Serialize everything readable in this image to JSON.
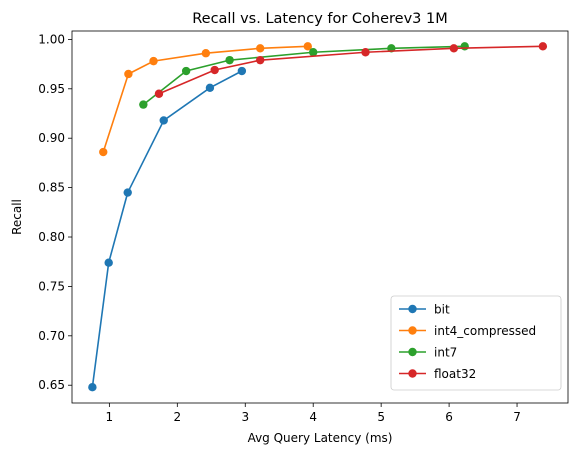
{
  "chart_data": {
    "type": "line",
    "title": "Recall vs. Latency for Coherev3 1M",
    "xlabel": "Avg Query Latency (ms)",
    "ylabel": "Recall",
    "xlim": [
      0.45,
      7.75
    ],
    "ylim": [
      0.632,
      1.0085
    ],
    "xticks": [
      1,
      2,
      3,
      4,
      5,
      6,
      7
    ],
    "yticks": [
      0.65,
      0.7,
      0.75,
      0.8,
      0.85,
      0.9,
      0.95,
      1.0
    ],
    "ytick_labels": [
      "0.65",
      "0.70",
      "0.75",
      "0.80",
      "0.85",
      "0.90",
      "0.95",
      "1.00"
    ],
    "grid": false,
    "legend": "lower-right",
    "series": [
      {
        "name": "bit",
        "color": "#1f77b4",
        "x": [
          0.75,
          0.99,
          1.27,
          1.8,
          2.48,
          2.95
        ],
        "y": [
          0.648,
          0.774,
          0.845,
          0.918,
          0.951,
          0.968
        ]
      },
      {
        "name": "int4_compressed",
        "color": "#ff7f0e",
        "x": [
          0.91,
          1.28,
          1.65,
          2.42,
          3.22,
          3.92
        ],
        "y": [
          0.886,
          0.965,
          0.978,
          0.986,
          0.991,
          0.993
        ]
      },
      {
        "name": "int7",
        "color": "#2ca02c",
        "x": [
          1.5,
          2.13,
          2.77,
          4.0,
          5.15,
          6.23
        ],
        "y": [
          0.934,
          0.968,
          0.979,
          0.987,
          0.991,
          0.993
        ]
      },
      {
        "name": "float32",
        "color": "#d62728",
        "x": [
          1.73,
          2.55,
          3.22,
          4.77,
          6.07,
          7.38
        ],
        "y": [
          0.945,
          0.969,
          0.979,
          0.987,
          0.991,
          0.993
        ]
      }
    ]
  }
}
